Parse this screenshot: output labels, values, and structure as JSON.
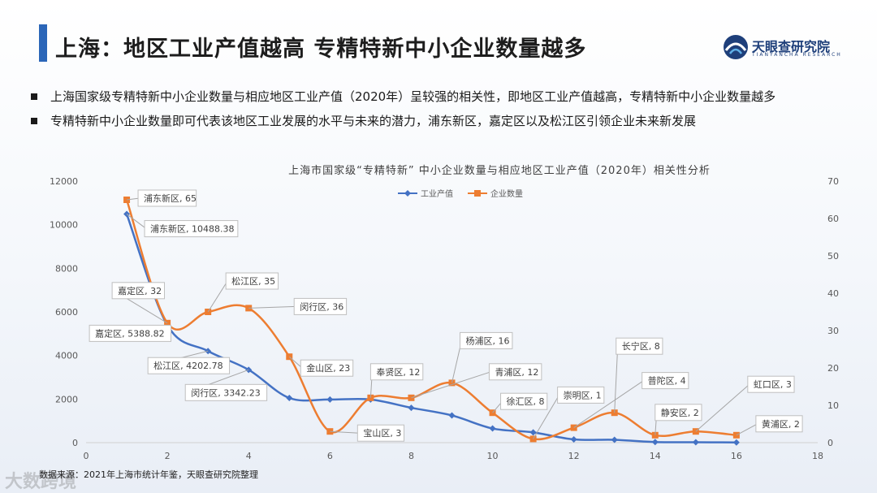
{
  "header": {
    "title": "上海：地区工业产值越高  专精特新中小企业数量越多",
    "logo_cn": "天眼查研究院",
    "logo_en": "TIANYANCHA RESEARCH",
    "accent": "#2b66b8"
  },
  "bullets": [
    "上海国家级专精特新中小企业数量与相应地区工业产值（2020年）呈较强的相关性，即地区工业产值越高，专精特新中小企业数量越多",
    "专精特新中小企业数量即可代表该地区工业发展的水平与未来的潜力，浦东新区，嘉定区以及松江区引领企业未来新发展"
  ],
  "source": "数据来源：2021年上海市统计年鉴，天眼查研究院整理",
  "watermark": "大数跨境",
  "chart_data": {
    "type": "line",
    "title": "上海市国家级“专精特新” 中小企业数量与相应地区工业产值（2020年）相关性分析",
    "x_ticks": [
      "0",
      "2",
      "4",
      "6",
      "8",
      "10",
      "12",
      "14",
      "16",
      "18"
    ],
    "xlim": [
      0,
      18
    ],
    "y_left_ticks": [
      "0",
      "2000",
      "4000",
      "6000",
      "8000",
      "10000",
      "12000"
    ],
    "ylim_left": [
      0,
      12000
    ],
    "y_right_ticks": [
      "0",
      "10",
      "20",
      "30",
      "40",
      "50",
      "60",
      "70"
    ],
    "ylim_right": [
      0,
      70
    ],
    "grid": false,
    "legend_position": "top-center",
    "series": [
      {
        "name": "工业产值",
        "axis": "left",
        "color": "#4472c4",
        "marker": "diamond",
        "x": [
          1,
          2,
          3,
          4,
          5,
          6,
          7,
          8,
          9,
          10,
          11,
          12,
          13,
          14,
          15,
          16
        ],
        "values": [
          10488.38,
          5388.82,
          4202.78,
          3342.23,
          2050,
          1980,
          1980,
          1600,
          1250,
          650,
          470,
          150,
          130,
          30,
          20,
          10
        ]
      },
      {
        "name": "企业数量",
        "axis": "right",
        "color": "#ed7d31",
        "marker": "square",
        "x": [
          1,
          2,
          3,
          4,
          5,
          6,
          7,
          8,
          9,
          10,
          11,
          12,
          13,
          14,
          15,
          16
        ],
        "values": [
          65,
          32,
          35,
          36,
          23,
          3,
          12,
          12,
          16,
          8,
          1,
          4,
          8,
          2,
          3,
          2
        ]
      }
    ],
    "annotations": [
      {
        "text": "浦东新区, 65",
        "series": 1,
        "point": 0,
        "dx": 14,
        "dy": -2
      },
      {
        "text": "浦东新区, 10488.38",
        "series": 0,
        "point": 0,
        "dx": 22,
        "dy": 18
      },
      {
        "text": "嘉定区, 32",
        "series": 1,
        "point": 1,
        "dx": -68,
        "dy": -40
      },
      {
        "text": "嘉定区, 5388.82",
        "series": 0,
        "point": 1,
        "dx": -96,
        "dy": 10
      },
      {
        "text": "松江区, 35",
        "series": 1,
        "point": 2,
        "dx": 22,
        "dy": -38
      },
      {
        "text": "松江区, 4202.78",
        "series": 0,
        "point": 2,
        "dx": -74,
        "dy": 18
      },
      {
        "text": "闵行区, 36",
        "series": 1,
        "point": 3,
        "dx": 56,
        "dy": -2
      },
      {
        "text": "闵行区, 3342.23",
        "series": 0,
        "point": 3,
        "dx": -78,
        "dy": 28
      },
      {
        "text": "金山区, 23",
        "series": 1,
        "point": 4,
        "dx": 14,
        "dy": 14
      },
      {
        "text": "宝山区, 3",
        "series": 1,
        "point": 5,
        "dx": 34,
        "dy": 2
      },
      {
        "text": "奉贤区, 12",
        "series": 1,
        "point": 6,
        "dx": 0,
        "dy": -32
      },
      {
        "text": "杨浦区, 16",
        "series": 1,
        "point": 8,
        "dx": 10,
        "dy": -52
      },
      {
        "text": "青浦区, 12",
        "series": 1,
        "point": 7,
        "dx": 96,
        "dy": -32
      },
      {
        "text": "徐汇区, 8",
        "series": 1,
        "point": 9,
        "dx": 10,
        "dy": -14
      },
      {
        "text": "崇明区, 1",
        "series": 1,
        "point": 10,
        "dx": 30,
        "dy": -54
      },
      {
        "text": "长宁区, 8",
        "series": 1,
        "point": 12,
        "dx": 2,
        "dy": -82
      },
      {
        "text": "普陀区, 4",
        "series": 1,
        "point": 11,
        "dx": 84,
        "dy": -58
      },
      {
        "text": "静安区, 2",
        "series": 1,
        "point": 13,
        "dx": 0,
        "dy": -28
      },
      {
        "text": "虹口区, 3",
        "series": 1,
        "point": 14,
        "dx": 64,
        "dy": -58
      },
      {
        "text": "黄浦区, 2",
        "series": 1,
        "point": 15,
        "dx": 24,
        "dy": -14
      }
    ]
  }
}
